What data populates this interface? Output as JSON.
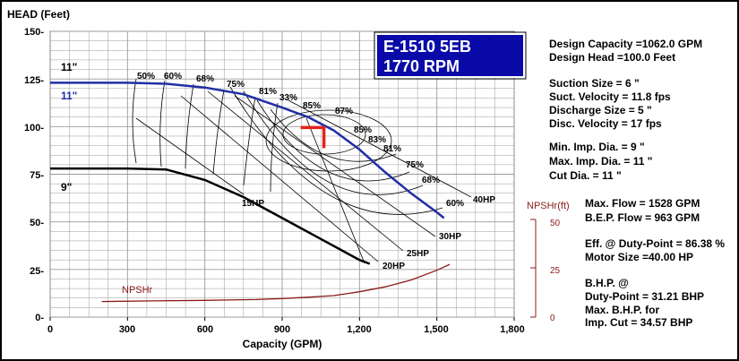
{
  "colors": {
    "impeller_max": "#1f2fa5",
    "npsh": "#8b1a1a",
    "title_box_bg": "#0a0aa8",
    "duty_point": "#e0241b",
    "grid": "#9a9a9a"
  },
  "title_box": {
    "line1": "E-1510 5EB",
    "line2": "1770 RPM"
  },
  "chart_data": {
    "type": "line",
    "xlabel": "Capacity (GPM)",
    "ylabel": "HEAD (Feet)",
    "xlim": [
      0,
      1800
    ],
    "ylim": [
      0,
      150
    ],
    "x_ticks": [
      "0",
      "300",
      "600",
      "900",
      "1,200",
      "1,500",
      "1,800"
    ],
    "y_ticks": [
      "0-",
      "25-",
      "50-",
      "75-",
      "100-",
      "125-",
      "150-"
    ],
    "grid": true,
    "series": [
      {
        "name": "11\"",
        "color": "#1f2fa5",
        "x": [
          0,
          300,
          450,
          600,
          750,
          900,
          1000,
          1100,
          1200,
          1300,
          1400,
          1500,
          1528
        ],
        "y": [
          123,
          123,
          122.5,
          120.5,
          117,
          110,
          105,
          98,
          88,
          76,
          65,
          55,
          52
        ]
      },
      {
        "name": "9\"",
        "color": "#000000",
        "x": [
          0,
          300,
          450,
          600,
          750,
          900,
          1050,
          1200,
          1240
        ],
        "y": [
          78,
          78,
          77.5,
          72,
          63,
          52,
          41,
          30,
          28
        ]
      },
      {
        "name": "NPSHr",
        "color": "#8b1a1a",
        "x": [
          200,
          400,
          600,
          800,
          900,
          1000,
          1100,
          1200,
          1300,
          1400,
          1500,
          1550
        ],
        "y": [
          8,
          8.3,
          8.6,
          9,
          9.5,
          10.2,
          11,
          13,
          15.5,
          19,
          24,
          27
        ]
      }
    ],
    "efficiency_labels": [
      "50%",
      "60%",
      "68%",
      "75%",
      "81%",
      "33%",
      "85%",
      "87%",
      "85%",
      "83%",
      "81%",
      "75%",
      "68%",
      "60%"
    ],
    "hp_labels": [
      "15HP",
      "20HP",
      "25HP",
      "30HP",
      "40HP"
    ],
    "curve_labels": {
      "max_diameter_top": "11\"",
      "max_diameter_blue": "11\"",
      "min_diameter": "9\"",
      "npsh": "NPSHr"
    },
    "npsh_axis": {
      "title": "NPSHr(ft)",
      "ticks": [
        "50",
        "25",
        "0"
      ]
    },
    "duty_point": {
      "x": 1062,
      "y": 100
    }
  },
  "specs": {
    "design_capacity": "Design Capacity =1062.0 GPM",
    "design_head": "Design Head =100.0 Feet",
    "suction_size": "Suction Size = 6 \"",
    "suction_velocity": "Suct. Velocity =  11.8 fps",
    "discharge_size": "Discharge Size = 5 \"",
    "discharge_velocity": "Disc. Velocity =  17 fps",
    "min_imp_dia": "Min. Imp. Dia. = 9 \"",
    "max_imp_dia": "Max. Imp. Dia. = 11 \"",
    "cut_dia": "Cut Dia. = 11 \"",
    "max_flow": "Max. Flow = 1528 GPM",
    "bep_flow": "B.E.P. Flow  = 963 GPM",
    "eff_duty": "Eff. @ Duty-Point = 86.38 %",
    "motor_size": "Motor Size =40.00 HP",
    "bhp_at": "B.H.P. @",
    "bhp_duty": "Duty-Point = 31.21 BHP",
    "max_bhp_for": "Max. B.H.P. for",
    "imp_cut_bhp": "Imp. Cut = 34.57 BHP"
  }
}
